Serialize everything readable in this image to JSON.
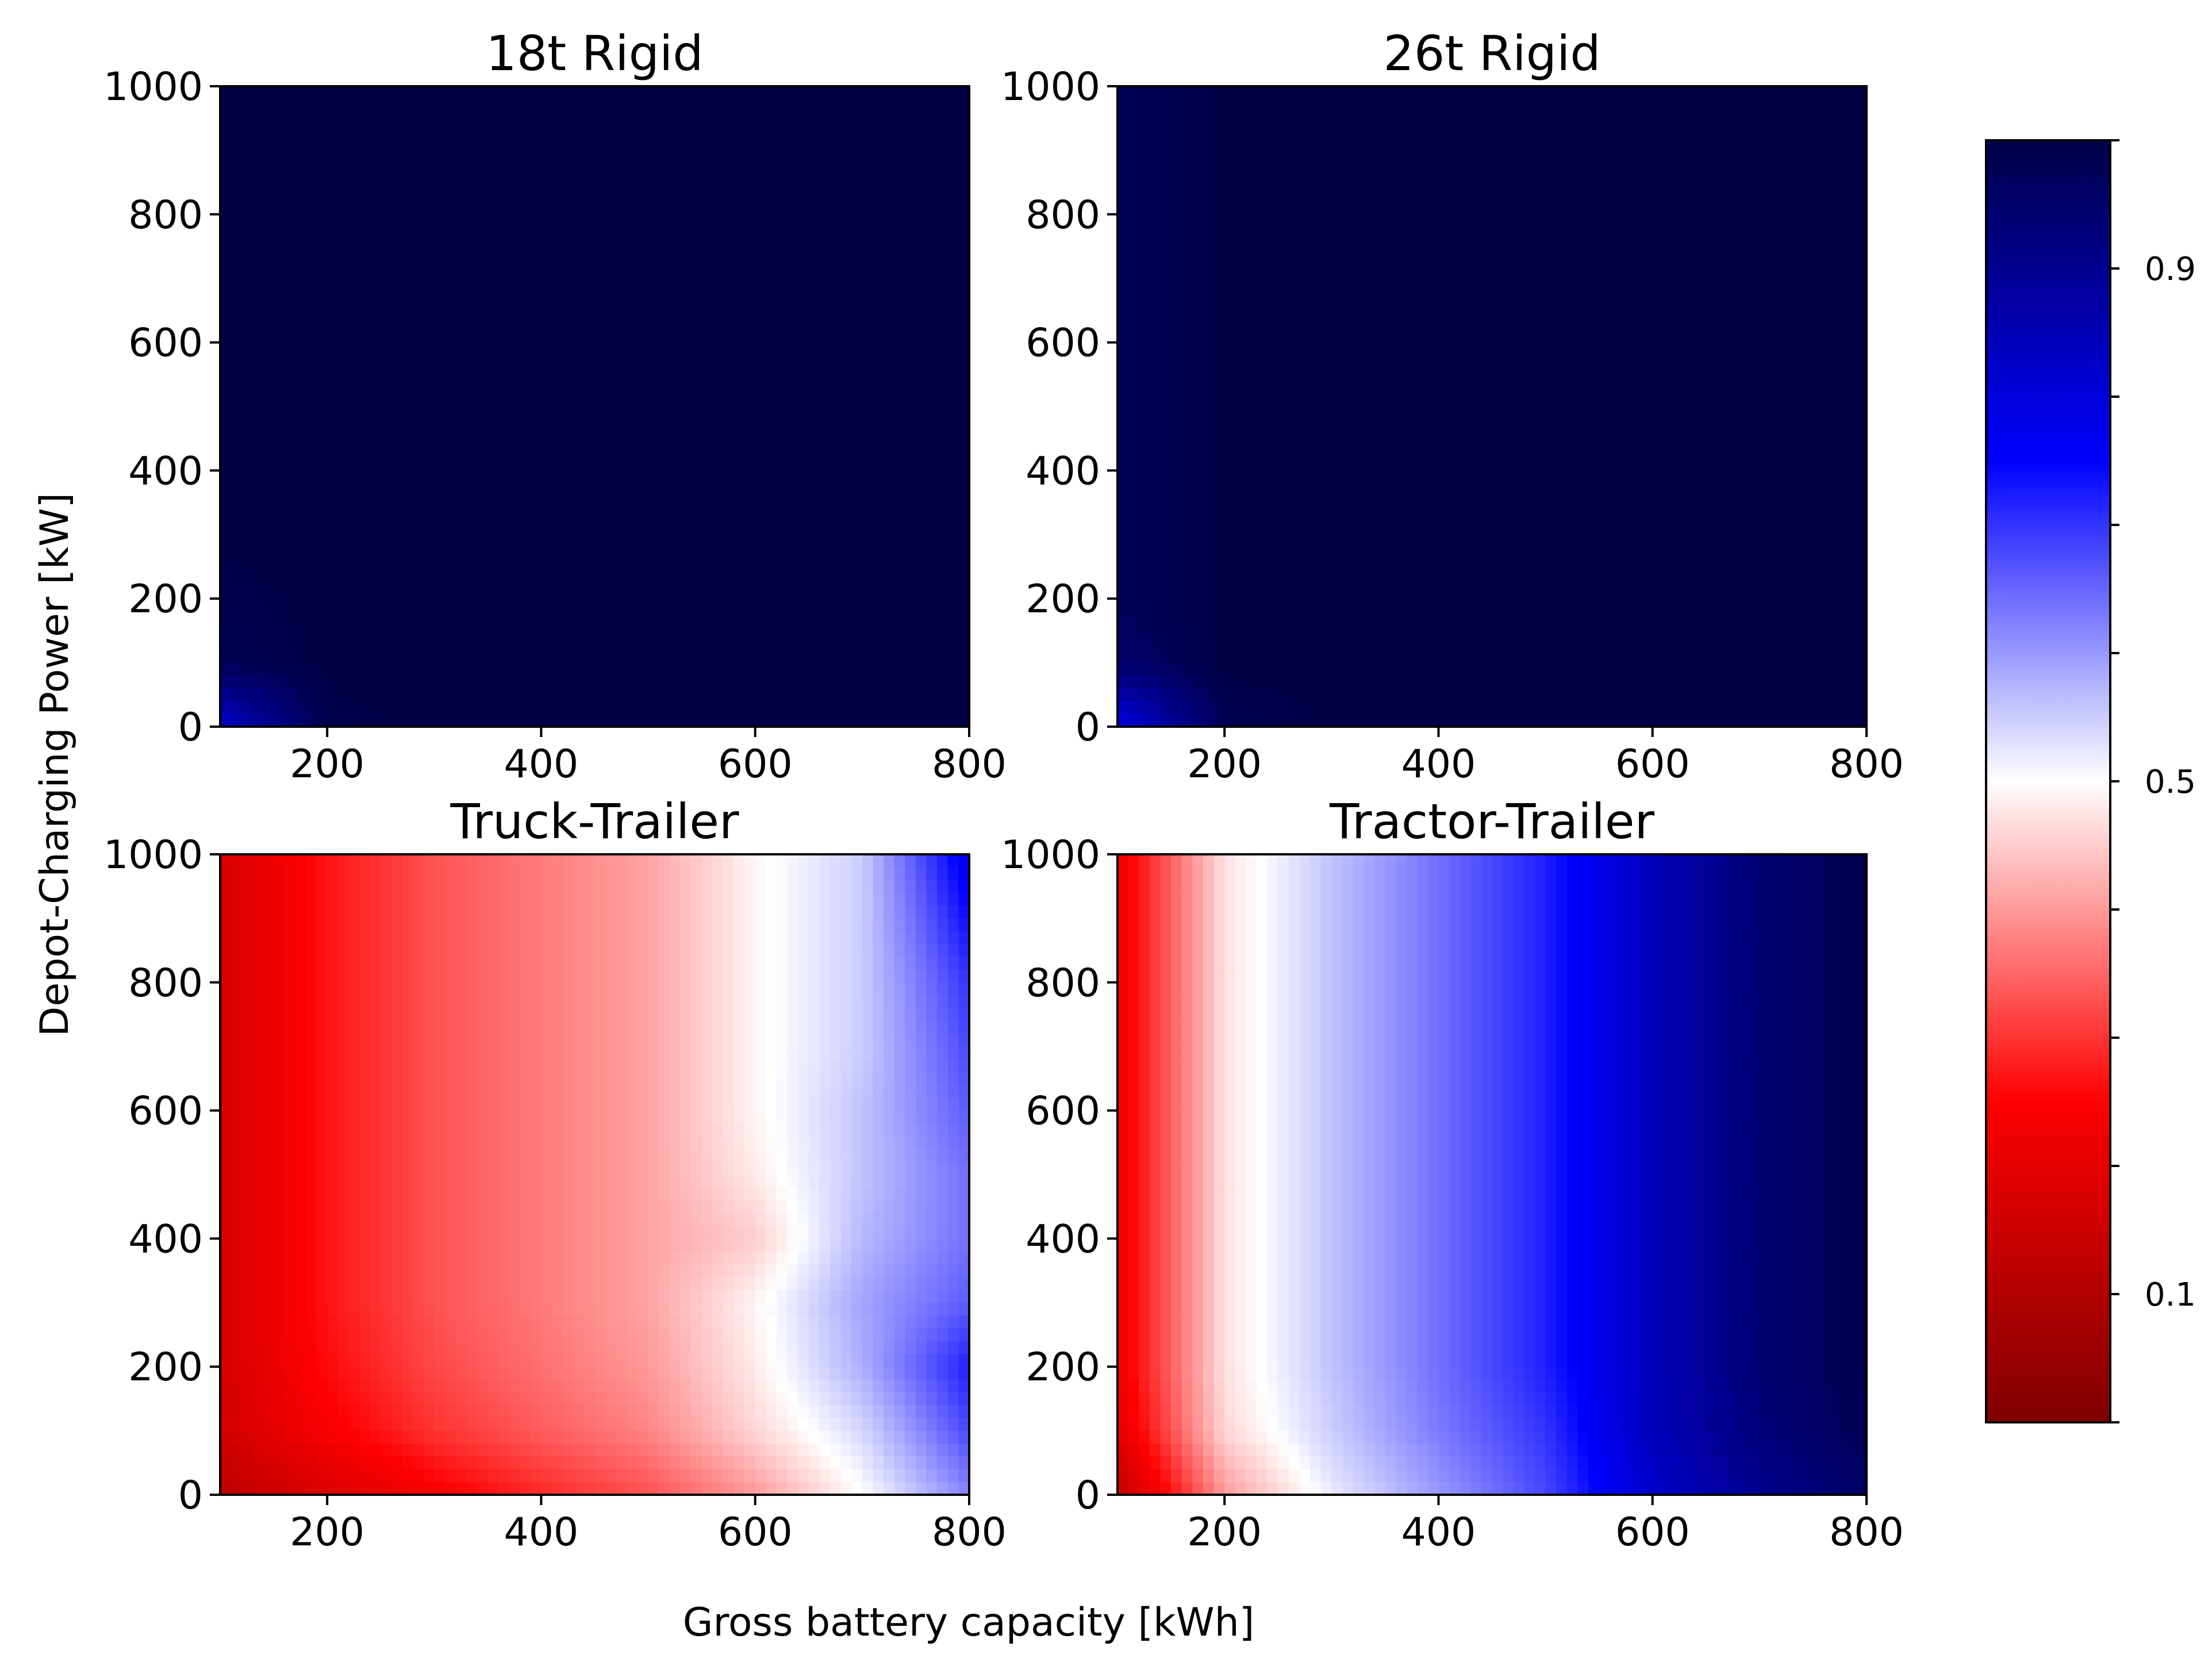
{
  "figure": {
    "xlabel": "Gross battery capacity [kWh]",
    "ylabel": "Depot-Charging Power [kW]"
  },
  "colorbar": {
    "colormap": "seismic_r",
    "range": [
      0.0,
      1.0
    ],
    "tick_labels": [
      {
        "value": 0.1,
        "label": "0.1"
      },
      {
        "value": 0.5,
        "label": "0.5"
      },
      {
        "value": 0.9,
        "label": "0.9"
      }
    ],
    "minor_ticks": [
      0.0,
      0.1,
      0.2,
      0.3,
      0.4,
      0.5,
      0.6,
      0.7,
      0.8,
      0.9,
      1.0
    ],
    "colors": {
      "low": "#7f0000",
      "red": "#ff0000",
      "mid": "#ffffff",
      "blue": "#0000ff",
      "high": "#000046"
    }
  },
  "chart_data": [
    {
      "type": "heatmap",
      "title": "18t Rigid",
      "xlim": [
        100,
        800
      ],
      "ylim": [
        0,
        1000
      ],
      "x_ticks": [
        200,
        400,
        600,
        800
      ],
      "y_ticks": [
        0,
        200,
        400,
        600,
        800,
        1000
      ],
      "x": [
        100,
        200,
        300,
        400,
        500,
        600,
        700,
        800
      ],
      "y": [
        0,
        100,
        200,
        300,
        400,
        500,
        600,
        700,
        800,
        900,
        1000
      ],
      "z": [
        [
          0.82,
          0.99,
          1.0,
          1.0,
          1.0,
          1.0,
          1.0,
          1.0
        ],
        [
          0.98,
          1.0,
          1.0,
          1.0,
          1.0,
          1.0,
          1.0,
          1.0
        ],
        [
          0.99,
          1.0,
          1.0,
          1.0,
          1.0,
          1.0,
          1.0,
          1.0
        ],
        [
          1.0,
          1.0,
          1.0,
          1.0,
          1.0,
          1.0,
          1.0,
          1.0
        ],
        [
          1.0,
          1.0,
          1.0,
          1.0,
          1.0,
          1.0,
          1.0,
          1.0
        ],
        [
          1.0,
          1.0,
          1.0,
          1.0,
          1.0,
          1.0,
          1.0,
          1.0
        ],
        [
          1.0,
          1.0,
          1.0,
          1.0,
          1.0,
          1.0,
          1.0,
          1.0
        ],
        [
          1.0,
          1.0,
          1.0,
          1.0,
          1.0,
          1.0,
          1.0,
          1.0
        ],
        [
          1.0,
          1.0,
          1.0,
          1.0,
          1.0,
          1.0,
          1.0,
          1.0
        ],
        [
          1.0,
          1.0,
          1.0,
          1.0,
          1.0,
          1.0,
          1.0,
          1.0
        ],
        [
          1.0,
          1.0,
          1.0,
          1.0,
          1.0,
          1.0,
          1.0,
          1.0
        ]
      ]
    },
    {
      "type": "heatmap",
      "title": "26t Rigid",
      "xlim": [
        100,
        800
      ],
      "ylim": [
        0,
        1000
      ],
      "x_ticks": [
        200,
        400,
        600,
        800
      ],
      "y_ticks": [
        0,
        200,
        400,
        600,
        800,
        1000
      ],
      "x": [
        100,
        200,
        300,
        400,
        500,
        600,
        700,
        800
      ],
      "y": [
        0,
        100,
        200,
        300,
        400,
        500,
        600,
        700,
        800,
        900,
        1000
      ],
      "z": [
        [
          0.78,
          0.98,
          1.0,
          1.0,
          1.0,
          1.0,
          1.0,
          1.0
        ],
        [
          0.95,
          1.0,
          1.0,
          1.0,
          1.0,
          1.0,
          1.0,
          1.0
        ],
        [
          0.97,
          1.0,
          1.0,
          1.0,
          1.0,
          1.0,
          1.0,
          1.0
        ],
        [
          0.97,
          1.0,
          1.0,
          1.0,
          1.0,
          1.0,
          1.0,
          1.0
        ],
        [
          0.97,
          1.0,
          1.0,
          1.0,
          1.0,
          1.0,
          1.0,
          1.0
        ],
        [
          0.97,
          1.0,
          1.0,
          1.0,
          1.0,
          1.0,
          1.0,
          1.0
        ],
        [
          0.97,
          1.0,
          1.0,
          1.0,
          1.0,
          1.0,
          1.0,
          1.0
        ],
        [
          0.97,
          1.0,
          1.0,
          1.0,
          1.0,
          1.0,
          1.0,
          1.0
        ],
        [
          0.97,
          1.0,
          1.0,
          1.0,
          1.0,
          1.0,
          1.0,
          1.0
        ],
        [
          0.97,
          1.0,
          1.0,
          1.0,
          1.0,
          1.0,
          1.0,
          1.0
        ],
        [
          0.97,
          1.0,
          1.0,
          1.0,
          1.0,
          1.0,
          1.0,
          1.0
        ]
      ]
    },
    {
      "type": "heatmap",
      "title": "Truck-Trailer",
      "xlim": [
        100,
        800
      ],
      "ylim": [
        0,
        1000
      ],
      "x_ticks": [
        200,
        400,
        600,
        800
      ],
      "y_ticks": [
        0,
        200,
        400,
        600,
        800,
        1000
      ],
      "x": [
        100,
        200,
        300,
        400,
        500,
        600,
        700,
        800
      ],
      "y": [
        0,
        100,
        200,
        300,
        400,
        500,
        600,
        700,
        800,
        900,
        1000
      ],
      "z": [
        [
          0.12,
          0.18,
          0.24,
          0.29,
          0.33,
          0.4,
          0.5,
          0.62
        ],
        [
          0.16,
          0.24,
          0.3,
          0.34,
          0.38,
          0.46,
          0.54,
          0.68
        ],
        [
          0.17,
          0.26,
          0.32,
          0.36,
          0.4,
          0.48,
          0.58,
          0.72
        ],
        [
          0.17,
          0.27,
          0.33,
          0.37,
          0.41,
          0.49,
          0.59,
          0.66
        ],
        [
          0.17,
          0.27,
          0.33,
          0.37,
          0.41,
          0.45,
          0.57,
          0.64
        ],
        [
          0.17,
          0.27,
          0.33,
          0.37,
          0.41,
          0.48,
          0.56,
          0.64
        ],
        [
          0.17,
          0.27,
          0.33,
          0.37,
          0.41,
          0.49,
          0.56,
          0.66
        ],
        [
          0.17,
          0.27,
          0.33,
          0.37,
          0.41,
          0.49,
          0.55,
          0.68
        ],
        [
          0.17,
          0.27,
          0.33,
          0.37,
          0.41,
          0.49,
          0.55,
          0.7
        ],
        [
          0.17,
          0.27,
          0.33,
          0.37,
          0.41,
          0.49,
          0.55,
          0.74
        ],
        [
          0.17,
          0.27,
          0.33,
          0.37,
          0.41,
          0.49,
          0.55,
          0.78
        ]
      ]
    },
    {
      "type": "heatmap",
      "title": "Tractor-Trailer",
      "xlim": [
        100,
        800
      ],
      "ylim": [
        0,
        1000
      ],
      "x_ticks": [
        200,
        400,
        600,
        800
      ],
      "y_ticks": [
        0,
        200,
        400,
        600,
        800,
        1000
      ],
      "x": [
        100,
        200,
        300,
        400,
        500,
        600,
        700,
        800
      ],
      "y": [
        0,
        100,
        200,
        300,
        400,
        500,
        600,
        700,
        800,
        900,
        1000
      ],
      "z": [
        [
          0.13,
          0.4,
          0.52,
          0.6,
          0.68,
          0.82,
          0.9,
          0.96
        ],
        [
          0.2,
          0.46,
          0.55,
          0.63,
          0.7,
          0.84,
          0.93,
          0.98
        ],
        [
          0.22,
          0.47,
          0.56,
          0.64,
          0.72,
          0.84,
          0.94,
          0.99
        ],
        [
          0.22,
          0.47,
          0.56,
          0.64,
          0.72,
          0.84,
          0.94,
          0.99
        ],
        [
          0.22,
          0.47,
          0.56,
          0.64,
          0.72,
          0.84,
          0.94,
          0.99
        ],
        [
          0.22,
          0.47,
          0.56,
          0.64,
          0.72,
          0.84,
          0.94,
          0.99
        ],
        [
          0.22,
          0.47,
          0.56,
          0.64,
          0.72,
          0.84,
          0.94,
          0.99
        ],
        [
          0.22,
          0.47,
          0.56,
          0.64,
          0.72,
          0.84,
          0.94,
          0.99
        ],
        [
          0.22,
          0.47,
          0.56,
          0.64,
          0.72,
          0.84,
          0.94,
          0.99
        ],
        [
          0.22,
          0.47,
          0.56,
          0.64,
          0.72,
          0.84,
          0.94,
          0.99
        ],
        [
          0.22,
          0.47,
          0.56,
          0.64,
          0.72,
          0.84,
          0.94,
          0.99
        ]
      ]
    }
  ]
}
